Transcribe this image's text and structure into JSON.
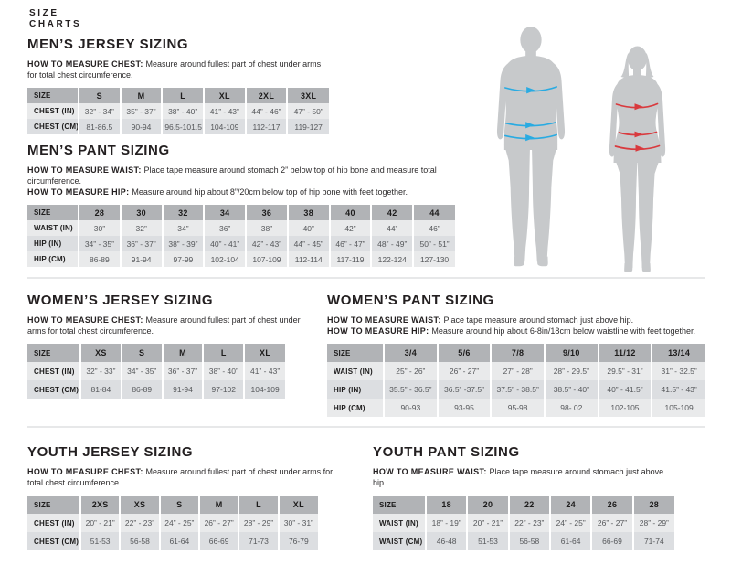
{
  "page": {
    "title_line1": "SIZE",
    "title_line2": "CHARTS"
  },
  "colors": {
    "header_bg": "#b1b3b6",
    "row_light": "#e9eaeb",
    "row_dark": "#dcdee1",
    "heading_text": "#231f20",
    "data_text": "#56585b",
    "divider": "#e7e8e9",
    "silhouette": "#c7c9cb",
    "male_arrow": "#29abe2",
    "female_arrow": "#d93a3e"
  },
  "figures": {
    "male": {
      "name": "male-silhouette",
      "arrow_color": "#29abe2",
      "arrows": [
        "chest",
        "waist",
        "hip"
      ]
    },
    "female": {
      "name": "female-silhouette",
      "arrow_color": "#d93a3e",
      "arrows": [
        "chest",
        "waist",
        "hip"
      ]
    }
  },
  "sections": [
    {
      "id": "mens-jersey",
      "title": "MEN’S JERSEY SIZING",
      "notes": [
        {
          "label": "HOW TO MEASURE CHEST:",
          "text": "Measure around fullest part of chest under arms for total chest circumference."
        }
      ],
      "table": {
        "corner": "SIZE",
        "label_col_width": 56,
        "columns": [
          "S",
          "M",
          "L",
          "XL",
          "2XL",
          "3XL"
        ],
        "rows": [
          {
            "label": "CHEST (IN)",
            "values": [
              "32” - 34”",
              "35” - 37”",
              "38” - 40”",
              "41” - 43”",
              "44” - 46”",
              "47” - 50”"
            ]
          },
          {
            "label": "CHEST (CM)",
            "values": [
              "81-86.5",
              "90-94",
              "96.5-101.5",
              "104-109",
              "112-117",
              "119-127"
            ]
          }
        ]
      }
    },
    {
      "id": "mens-pant",
      "title": "MEN’S PANT SIZING",
      "notes": [
        {
          "label": "HOW TO MEASURE WAIST:",
          "text": "Place tape measure around stomach 2” below top of hip bone and measure total circumference."
        },
        {
          "label": "HOW TO MEASURE HIP:",
          "text": "Measure around hip about 8”/20cm below top of hip bone with feet together."
        }
      ],
      "table": {
        "corner": "SIZE",
        "label_col_width": 56,
        "columns": [
          "28",
          "30",
          "32",
          "34",
          "36",
          "38",
          "40",
          "42",
          "44"
        ],
        "rows": [
          {
            "label": "WAIST (IN)",
            "values": [
              "30”",
              "32”",
              "34”",
              "36”",
              "38”",
              "40”",
              "42”",
              "44”",
              "46”"
            ]
          },
          {
            "label": "HIP (IN)",
            "values": [
              "34” - 35”",
              "36” - 37”",
              "38” - 39”",
              "40” - 41”",
              "42” - 43”",
              "44” - 45”",
              "46” - 47”",
              "48” - 49”",
              "50” - 51”"
            ]
          },
          {
            "label": "HIP (CM)",
            "values": [
              "86-89",
              "91-94",
              "97-99",
              "102-104",
              "107-109",
              "112-114",
              "117-119",
              "122-124",
              "127-130"
            ]
          }
        ]
      }
    },
    {
      "id": "womens-jersey",
      "title": "WOMEN’S JERSEY SIZING",
      "notes": [
        {
          "label": "HOW TO MEASURE CHEST:",
          "text": "Measure around fullest part of chest under arms for total chest circumference."
        }
      ],
      "table": {
        "corner": "SIZE",
        "label_col_width": 58,
        "columns": [
          "XS",
          "S",
          "M",
          "L",
          "XL"
        ],
        "rows": [
          {
            "label": "CHEST (IN)",
            "values": [
              "32” - 33”",
              "34” - 35”",
              "36” - 37”",
              "38” - 40”",
              "41” - 43”"
            ]
          },
          {
            "label": "CHEST (CM)",
            "values": [
              "81-84",
              "86-89",
              "91-94",
              "97-102",
              "104-109"
            ]
          }
        ]
      }
    },
    {
      "id": "womens-pant",
      "title": "WOMEN’S PANT SIZING",
      "notes": [
        {
          "label": "HOW TO MEASURE WAIST:",
          "text": "Place tape measure around stomach just above hip."
        },
        {
          "label": "HOW TO MEASURE HIP:",
          "text": "Measure around hip about 6-8in/18cm below waistline with feet together."
        }
      ],
      "table": {
        "corner": "SIZE",
        "label_col_width": 62,
        "columns": [
          "3/4",
          "5/6",
          "7/8",
          "9/10",
          "11/12",
          "13/14"
        ],
        "rows": [
          {
            "label": "WAIST (IN)",
            "values": [
              "25” - 26”",
              "26” - 27”",
              "27” - 28”",
              "28” - 29.5”",
              "29.5” - 31”",
              "31” - 32.5”"
            ]
          },
          {
            "label": "HIP (IN)",
            "values": [
              "35.5” - 36.5”",
              "36.5” -37.5”",
              "37.5” - 38.5”",
              "38.5” - 40”",
              "40” - 41.5”",
              "41.5” - 43”"
            ]
          },
          {
            "label": "HIP (CM)",
            "values": [
              "90-93",
              "93-95",
              "95-98",
              "98- 02",
              "102-105",
              "105-109"
            ]
          }
        ]
      }
    },
    {
      "id": "youth-jersey",
      "title": "YOUTH JERSEY SIZING",
      "notes": [
        {
          "label": "HOW TO MEASURE CHEST:",
          "text": "Measure around fullest part of chest under arms for total chest circumference."
        }
      ],
      "table": {
        "corner": "SIZE",
        "label_col_width": 58,
        "columns": [
          "2XS",
          "XS",
          "S",
          "M",
          "L",
          "XL"
        ],
        "rows": [
          {
            "label": "CHEST (IN)",
            "values": [
              "20” - 21”",
              "22” - 23”",
              "24” - 25”",
              "26” - 27”",
              "28” - 29”",
              "30” - 31”"
            ]
          },
          {
            "label": "CHEST (CM)",
            "values": [
              "51-53",
              "56-58",
              "61-64",
              "66-69",
              "71-73",
              "76-79"
            ]
          }
        ]
      }
    },
    {
      "id": "youth-pant",
      "title": "YOUTH PANT SIZING",
      "notes": [
        {
          "label": "HOW TO MEASURE WAIST:",
          "text": "Place tape measure around stomach just above hip."
        }
      ],
      "table": {
        "corner": "SIZE",
        "label_col_width": 58,
        "columns": [
          "18",
          "20",
          "22",
          "24",
          "26",
          "28"
        ],
        "rows": [
          {
            "label": "WAIST (IN)",
            "values": [
              "18” - 19”",
              "20” - 21”",
              "22” - 23”",
              "24” - 25”",
              "26” - 27”",
              "28” - 29”"
            ]
          },
          {
            "label": "WAIST (CM)",
            "values": [
              "46-48",
              "51-53",
              "56-58",
              "61-64",
              "66-69",
              "71-74"
            ]
          }
        ]
      }
    }
  ]
}
